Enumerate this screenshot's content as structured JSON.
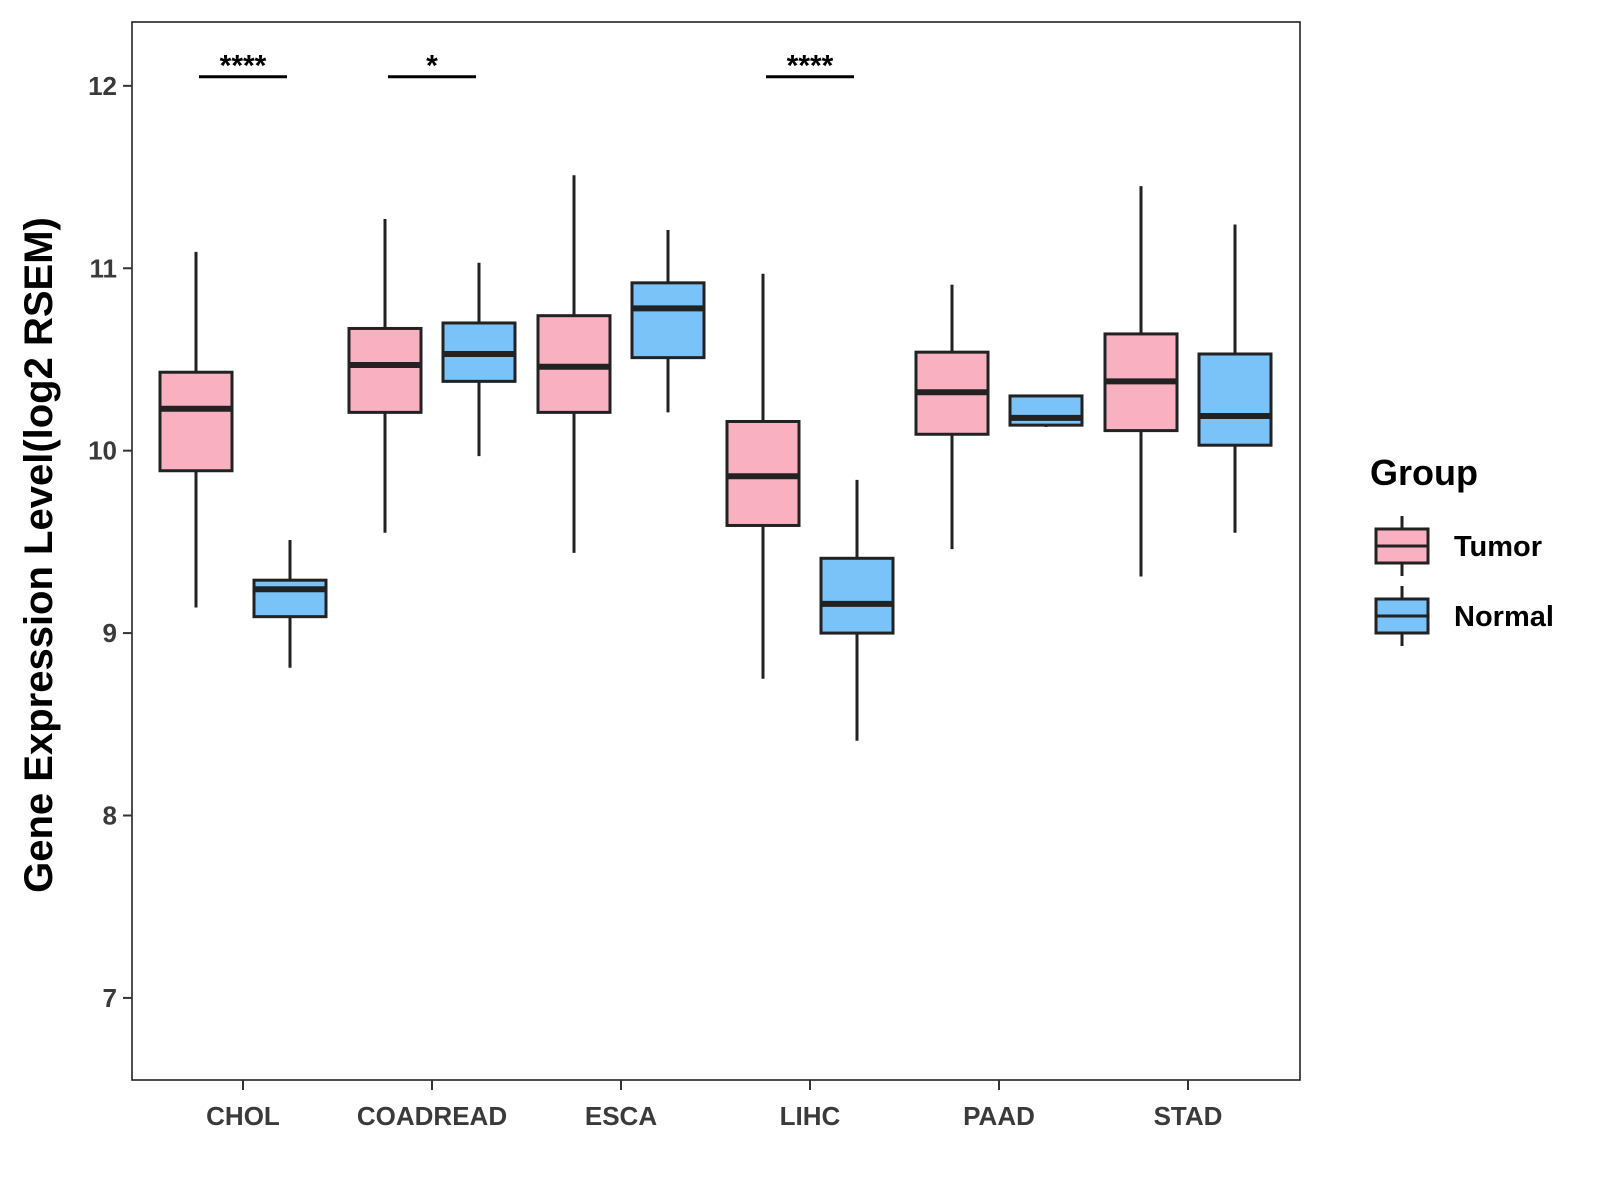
{
  "chart_data": {
    "type": "boxplot",
    "title": "",
    "xlabel": "",
    "ylabel": "Gene Expression Level(log2 RSEM)",
    "ylim": [
      6.55,
      12.35
    ],
    "yticks": [
      7,
      8,
      9,
      10,
      11,
      12
    ],
    "grid": false,
    "legend_position": "right",
    "legend": {
      "title": "Group"
    },
    "colors": {
      "Tumor": "#f9b1c2",
      "Normal": "#7ac3f8",
      "stroke": "#222222"
    },
    "categories": [
      "CHOL",
      "COADREAD",
      "ESCA",
      "LIHC",
      "PAAD",
      "STAD"
    ],
    "series": [
      {
        "name": "Tumor",
        "boxes": [
          {
            "min": 9.14,
            "q1": 9.89,
            "median": 10.23,
            "q3": 10.43,
            "max": 11.09
          },
          {
            "min": 9.55,
            "q1": 10.21,
            "median": 10.47,
            "q3": 10.67,
            "max": 11.27
          },
          {
            "min": 9.44,
            "q1": 10.21,
            "median": 10.46,
            "q3": 10.74,
            "max": 11.51
          },
          {
            "min": 8.75,
            "q1": 9.59,
            "median": 9.86,
            "q3": 10.16,
            "max": 10.97
          },
          {
            "min": 9.46,
            "q1": 10.09,
            "median": 10.32,
            "q3": 10.54,
            "max": 10.91
          },
          {
            "min": 9.31,
            "q1": 10.11,
            "median": 10.38,
            "q3": 10.64,
            "max": 11.45
          }
        ]
      },
      {
        "name": "Normal",
        "boxes": [
          {
            "min": 8.81,
            "q1": 9.09,
            "median": 9.24,
            "q3": 9.29,
            "max": 9.51
          },
          {
            "min": 9.97,
            "q1": 10.38,
            "median": 10.53,
            "q3": 10.7,
            "max": 11.03
          },
          {
            "min": 10.21,
            "q1": 10.51,
            "median": 10.78,
            "q3": 10.92,
            "max": 11.21
          },
          {
            "min": 8.41,
            "q1": 9.0,
            "median": 9.16,
            "q3": 9.41,
            "max": 9.84
          },
          {
            "min": 10.13,
            "q1": 10.14,
            "median": 10.18,
            "q3": 10.3,
            "max": 10.3
          },
          {
            "min": 9.55,
            "q1": 10.03,
            "median": 10.19,
            "q3": 10.53,
            "max": 11.24
          }
        ]
      }
    ],
    "significance": [
      {
        "category": "CHOL",
        "label": "****",
        "y": 12.05
      },
      {
        "category": "COADREAD",
        "label": "*",
        "y": 12.05
      },
      {
        "category": "LIHC",
        "label": "****",
        "y": 12.05
      }
    ]
  }
}
